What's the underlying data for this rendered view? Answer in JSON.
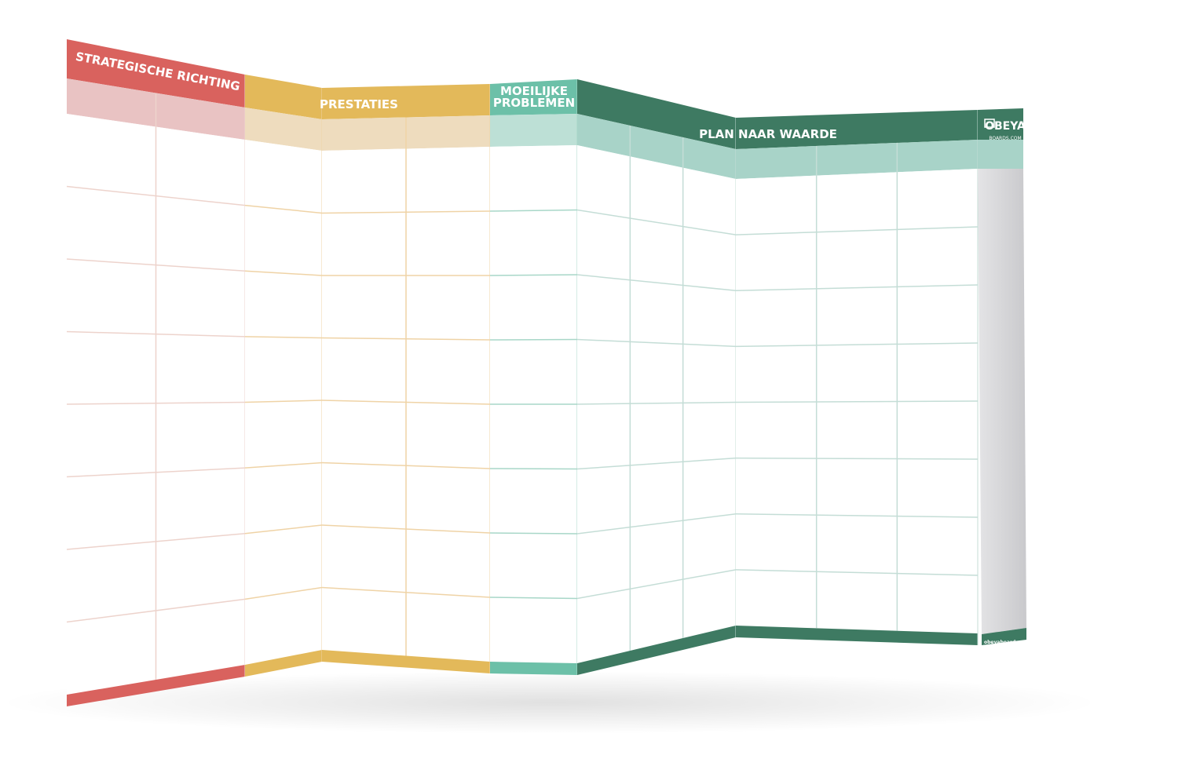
{
  "board": {
    "sections": [
      {
        "title": "STRATEGISCHE RICHTING"
      },
      {
        "title": "PRESTATIES"
      },
      {
        "title_lines": [
          "MOEILIJKE",
          "PROBLEMEN"
        ]
      },
      {
        "title": "PLAN NAAR WAARDE"
      }
    ],
    "logo": {
      "name": "OBEYA",
      "domain": "BOARDS.COM"
    },
    "footer": "obeyaboards.com"
  }
}
